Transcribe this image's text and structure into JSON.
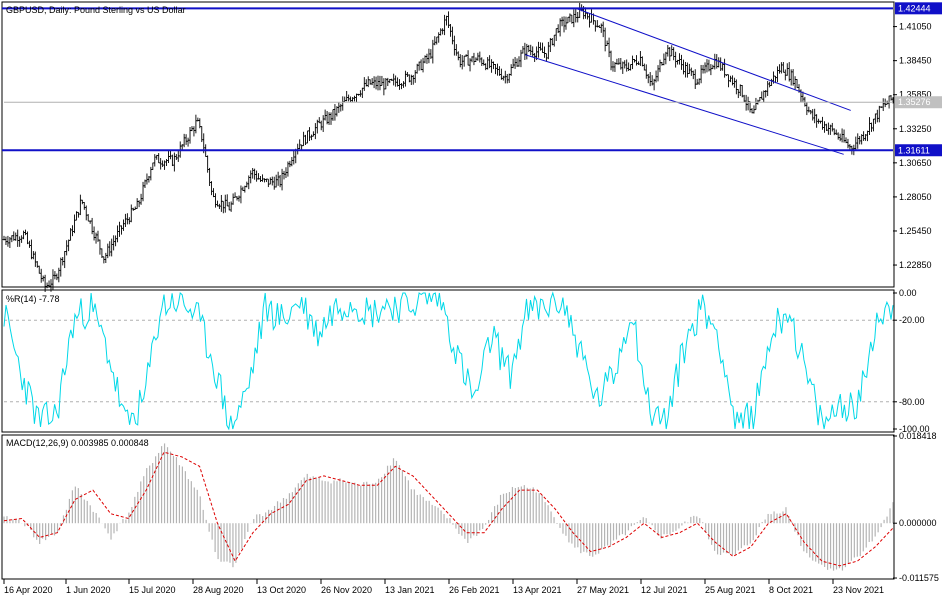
{
  "chart_data": [
    {
      "type": "ohlc",
      "panel": "price",
      "title": "GBPUSD, Daily:  Pound Sterling vs US Dollar",
      "ylim": [
        1.2125,
        1.4285
      ],
      "y_ticks": [
        "1.41050",
        "1.38450",
        "1.35850",
        "1.33250",
        "1.30650",
        "1.28050",
        "1.25450",
        "1.22850"
      ],
      "horizontal_lines": [
        {
          "value": 1.42444,
          "label": "1.42444",
          "color": "#1010c8"
        },
        {
          "value": 1.31611,
          "label": "1.31611",
          "color": "#1010c8"
        }
      ],
      "current_price": {
        "value": 1.35276,
        "label": "1.35276"
      },
      "channel_lines": [
        {
          "from": {
            "date": "2021-05-27",
            "price": 1.4244
          },
          "to": {
            "date": "2021-12-08",
            "price": 1.3465
          }
        },
        {
          "from": {
            "date": "2021-04-21",
            "price": 1.389
          },
          "to": {
            "date": "2021-12-03",
            "price": 1.313
          }
        }
      ],
      "closes": [
        {
          "date": "2020-04-16",
          "close": 1.248
        },
        {
          "date": "2020-04-30",
          "close": 1.252
        },
        {
          "date": "2020-05-15",
          "close": 1.212
        },
        {
          "date": "2020-05-22",
          "close": 1.218
        },
        {
          "date": "2020-06-01",
          "close": 1.248
        },
        {
          "date": "2020-06-10",
          "close": 1.278
        },
        {
          "date": "2020-06-26",
          "close": 1.234
        },
        {
          "date": "2020-07-10",
          "close": 1.26
        },
        {
          "date": "2020-07-20",
          "close": 1.274
        },
        {
          "date": "2020-07-31",
          "close": 1.309
        },
        {
          "date": "2020-08-14",
          "close": 1.308
        },
        {
          "date": "2020-08-31",
          "close": 1.338
        },
        {
          "date": "2020-09-04",
          "close": 1.324
        },
        {
          "date": "2020-09-11",
          "close": 1.28
        },
        {
          "date": "2020-09-23",
          "close": 1.272
        },
        {
          "date": "2020-10-09",
          "close": 1.3
        },
        {
          "date": "2020-10-16",
          "close": 1.292
        },
        {
          "date": "2020-10-29",
          "close": 1.292
        },
        {
          "date": "2020-11-09",
          "close": 1.318
        },
        {
          "date": "2020-11-26",
          "close": 1.336
        },
        {
          "date": "2020-12-04",
          "close": 1.342
        },
        {
          "date": "2020-12-17",
          "close": 1.356
        },
        {
          "date": "2020-12-31",
          "close": 1.367
        },
        {
          "date": "2021-01-13",
          "close": 1.366
        },
        {
          "date": "2021-01-29",
          "close": 1.372
        },
        {
          "date": "2021-02-12",
          "close": 1.388
        },
        {
          "date": "2021-02-24",
          "close": 1.417
        },
        {
          "date": "2021-03-05",
          "close": 1.384
        },
        {
          "date": "2021-03-19",
          "close": 1.386
        },
        {
          "date": "2021-04-07",
          "close": 1.372
        },
        {
          "date": "2021-04-21",
          "close": 1.393
        },
        {
          "date": "2021-05-06",
          "close": 1.39
        },
        {
          "date": "2021-05-14",
          "close": 1.41
        },
        {
          "date": "2021-06-01",
          "close": 1.422
        },
        {
          "date": "2021-06-14",
          "close": 1.41
        },
        {
          "date": "2021-06-21",
          "close": 1.382
        },
        {
          "date": "2021-07-01",
          "close": 1.379
        },
        {
          "date": "2021-07-12",
          "close": 1.387
        },
        {
          "date": "2021-07-20",
          "close": 1.364
        },
        {
          "date": "2021-07-30",
          "close": 1.394
        },
        {
          "date": "2021-08-20",
          "close": 1.37
        },
        {
          "date": "2021-09-03",
          "close": 1.385
        },
        {
          "date": "2021-09-22",
          "close": 1.36
        },
        {
          "date": "2021-09-29",
          "close": 1.342
        },
        {
          "date": "2021-10-08",
          "close": 1.362
        },
        {
          "date": "2021-10-20",
          "close": 1.38
        },
        {
          "date": "2021-10-29",
          "close": 1.37
        },
        {
          "date": "2021-11-10",
          "close": 1.342
        },
        {
          "date": "2021-11-24",
          "close": 1.332
        },
        {
          "date": "2021-12-08",
          "close": 1.318
        },
        {
          "date": "2021-12-17",
          "close": 1.328
        },
        {
          "date": "2021-12-31",
          "close": 1.35
        },
        {
          "date": "2022-01-07",
          "close": 1.356
        }
      ]
    },
    {
      "type": "line",
      "panel": "williams-r",
      "label": "%R(14) -7.78",
      "color": "#00d8e8",
      "ylim": [
        -100,
        0
      ],
      "y_ticks": [
        "0.00",
        "-20.00",
        "-80.00",
        "-100.00"
      ],
      "levels": [
        -20,
        -80
      ],
      "values": [
        -15,
        -60,
        -95,
        -90,
        -20,
        -10,
        -45,
        -98,
        -80,
        -10,
        -5,
        -15,
        -50,
        -100,
        -70,
        -10,
        -20,
        -5,
        -30,
        -10,
        -5,
        -15,
        -8,
        -10,
        -4,
        -2,
        -45,
        -80,
        -30,
        -60,
        -15,
        -10,
        -5,
        -40,
        -80,
        -60,
        -10,
        -85,
        -95,
        -40,
        -10,
        -30,
        -100,
        -90,
        -30,
        -10,
        -60,
        -100,
        -80,
        -85,
        -20,
        -8
      ]
    },
    {
      "type": "bar+line",
      "panel": "macd",
      "label": "MACD(12,26,9) 0.003985 0.000848",
      "ylim": [
        -0.01157,
        0.01842
      ],
      "y_ticks": [
        "0.018418",
        "0.000000",
        "-0.011575"
      ],
      "histogram_color": "#b4b4b4",
      "signal_color": "#dd0000",
      "histogram": [
        0.001,
        0.0005,
        -0.004,
        -0.002,
        0.008,
        0.003,
        -0.003,
        0.002,
        0.011,
        0.017,
        0.012,
        0.006,
        -0.008,
        -0.009,
        0.001,
        0.003,
        0.006,
        0.01,
        0.009,
        0.009,
        0.008,
        0.009,
        0.014,
        0.007,
        0.004,
        0.001,
        -0.004,
        -0.001,
        0.006,
        0.008,
        0.007,
        0.001,
        -0.005,
        -0.007,
        -0.005,
        -0.002,
        0.001,
        -0.003,
        -0.001,
        0.002,
        -0.006,
        -0.007,
        -0.004,
        0.002,
        0.003,
        -0.006,
        -0.009,
        -0.01,
        -0.007,
        -0.003,
        0.004
      ],
      "signal": [
        0.0005,
        0.001,
        -0.003,
        -0.002,
        0.005,
        0.007,
        0.002,
        0.001,
        0.007,
        0.015,
        0.014,
        0.012,
        0.0,
        -0.008,
        -0.002,
        0.002,
        0.004,
        0.009,
        0.01,
        0.009,
        0.008,
        0.008,
        0.012,
        0.01,
        0.006,
        0.002,
        -0.002,
        -0.002,
        0.003,
        0.007,
        0.007,
        0.003,
        -0.002,
        -0.006,
        -0.005,
        -0.003,
        0.0,
        -0.003,
        -0.002,
        0.0,
        -0.004,
        -0.007,
        -0.005,
        0.0,
        0.002,
        -0.004,
        -0.008,
        -0.009,
        -0.008,
        -0.005,
        -0.001
      ]
    }
  ],
  "x_axis_labels": [
    "16 Apr 2020",
    "1 Jun 2020",
    "15 Jul 2020",
    "28 Aug 2020",
    "13 Oct 2020",
    "26 Nov 2020",
    "13 Jan 2021",
    "26 Feb 2021",
    "13 Apr 2021",
    "27 May 2021",
    "12 Jul 2021",
    "25 Aug 2021",
    "8 Oct 2021",
    "23 Nov 2021"
  ],
  "colors": {
    "level_line": "#1010c8",
    "channel": "#1010c8",
    "price_bar": "#000000",
    "current_tag_bg": "#c0c0c0",
    "level_tag_bg": "#1010c8"
  }
}
